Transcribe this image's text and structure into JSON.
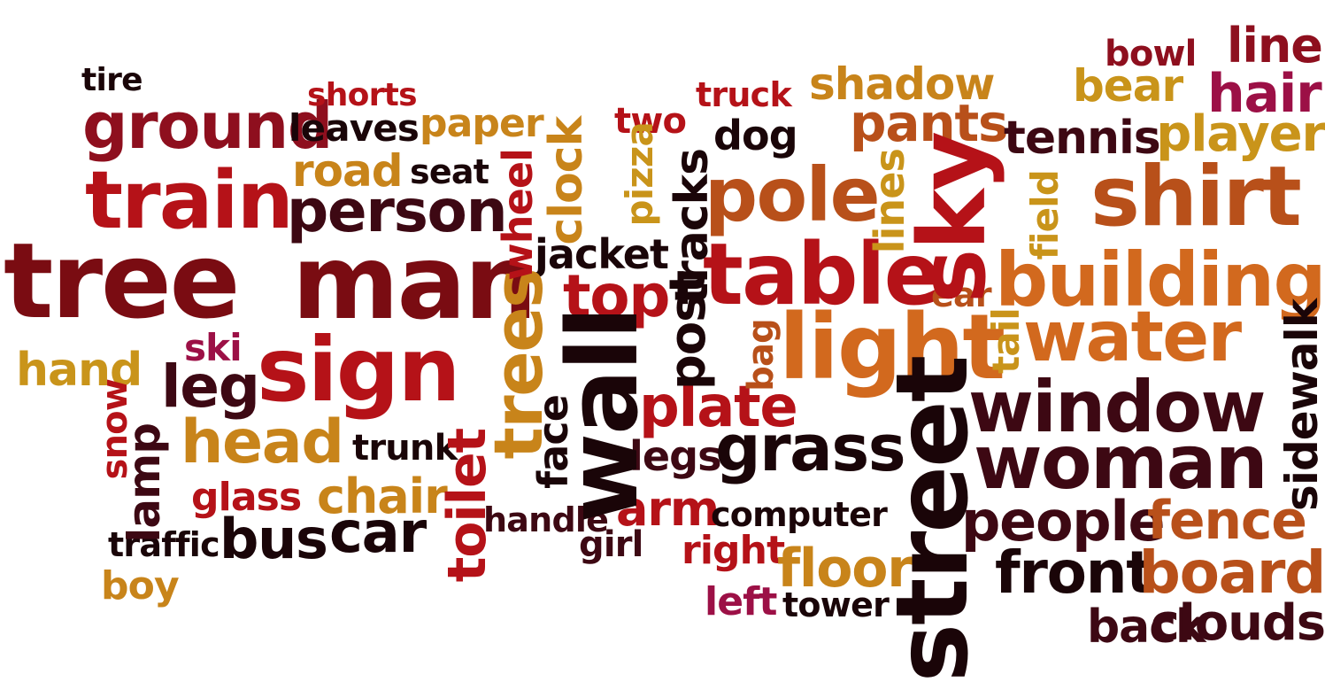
{
  "palette": {
    "red": "#b51218",
    "crimson": "#8e0f1e",
    "dark_red": "#7a0c12",
    "maroon": "#3d0813",
    "black": "#1a0508",
    "orange": "#d2691e",
    "amber": "#c8841a",
    "gold": "#c9941a",
    "rust": "#b8501a",
    "magenta": "#9c1046"
  },
  "words": [
    {
      "id": "tree",
      "text": "tree",
      "color": "dark_red",
      "orient": "h"
    },
    {
      "id": "man",
      "text": "man",
      "color": "dark_red",
      "orient": "h"
    },
    {
      "id": "train",
      "text": "train",
      "color": "red",
      "orient": "h"
    },
    {
      "id": "ground",
      "text": "ground",
      "color": "crimson",
      "orient": "h"
    },
    {
      "id": "tire",
      "text": "tire",
      "color": "black",
      "orient": "h"
    },
    {
      "id": "shorts",
      "text": "shorts",
      "color": "red",
      "orient": "h"
    },
    {
      "id": "leaves",
      "text": "leaves",
      "color": "black",
      "orient": "h"
    },
    {
      "id": "paper",
      "text": "paper",
      "color": "amber",
      "orient": "h"
    },
    {
      "id": "road",
      "text": "road",
      "color": "amber",
      "orient": "h"
    },
    {
      "id": "seat",
      "text": "seat",
      "color": "black",
      "orient": "h"
    },
    {
      "id": "person",
      "text": "person",
      "color": "maroon",
      "orient": "h"
    },
    {
      "id": "sign",
      "text": "sign",
      "color": "red",
      "orient": "h"
    },
    {
      "id": "ski",
      "text": "ski",
      "color": "magenta",
      "orient": "h"
    },
    {
      "id": "hand",
      "text": "hand",
      "color": "gold",
      "orient": "h"
    },
    {
      "id": "leg",
      "text": "leg",
      "color": "maroon",
      "orient": "h"
    },
    {
      "id": "head",
      "text": "head",
      "color": "amber",
      "orient": "h"
    },
    {
      "id": "glass",
      "text": "glass",
      "color": "red",
      "orient": "h"
    },
    {
      "id": "chair",
      "text": "chair",
      "color": "amber",
      "orient": "h"
    },
    {
      "id": "trunk",
      "text": "trunk",
      "color": "black",
      "orient": "h"
    },
    {
      "id": "bus",
      "text": "bus",
      "color": "black",
      "orient": "h"
    },
    {
      "id": "car",
      "text": "car",
      "color": "black",
      "orient": "h"
    },
    {
      "id": "traffic",
      "text": "traffic",
      "color": "black",
      "orient": "h"
    },
    {
      "id": "boy",
      "text": "boy",
      "color": "amber",
      "orient": "h"
    },
    {
      "id": "handle",
      "text": "handle",
      "color": "maroon",
      "orient": "h"
    },
    {
      "id": "girl",
      "text": "girl",
      "color": "maroon",
      "orient": "h"
    },
    {
      "id": "jacket",
      "text": "jacket",
      "color": "black",
      "orient": "h"
    },
    {
      "id": "top",
      "text": "top",
      "color": "red",
      "orient": "h"
    },
    {
      "id": "two",
      "text": "two",
      "color": "red",
      "orient": "h"
    },
    {
      "id": "truck",
      "text": "truck",
      "color": "red",
      "orient": "h"
    },
    {
      "id": "dog",
      "text": "dog",
      "color": "black",
      "orient": "h"
    },
    {
      "id": "shadow",
      "text": "shadow",
      "color": "amber",
      "orient": "h"
    },
    {
      "id": "pants",
      "text": "pants",
      "color": "rust",
      "orient": "h"
    },
    {
      "id": "pole",
      "text": "pole",
      "color": "rust",
      "orient": "h"
    },
    {
      "id": "table",
      "text": "table",
      "color": "red",
      "orient": "h"
    },
    {
      "id": "light",
      "text": "light",
      "color": "orange",
      "orient": "h"
    },
    {
      "id": "plate",
      "text": "plate",
      "color": "red",
      "orient": "h"
    },
    {
      "id": "legs",
      "text": "legs",
      "color": "maroon",
      "orient": "h"
    },
    {
      "id": "grass",
      "text": "grass",
      "color": "black",
      "orient": "h"
    },
    {
      "id": "arm",
      "text": "arm",
      "color": "red",
      "orient": "h"
    },
    {
      "id": "computer",
      "text": "computer",
      "color": "black",
      "orient": "h"
    },
    {
      "id": "right",
      "text": "right",
      "color": "red",
      "orient": "h"
    },
    {
      "id": "floor",
      "text": "floor",
      "color": "amber",
      "orient": "h"
    },
    {
      "id": "left",
      "text": "left",
      "color": "magenta",
      "orient": "h"
    },
    {
      "id": "tower",
      "text": "tower",
      "color": "black",
      "orient": "h"
    },
    {
      "id": "bowl",
      "text": "bowl",
      "color": "crimson",
      "orient": "h"
    },
    {
      "id": "line",
      "text": "line",
      "color": "crimson",
      "orient": "h"
    },
    {
      "id": "bear",
      "text": "bear",
      "color": "gold",
      "orient": "h"
    },
    {
      "id": "hair",
      "text": "hair",
      "color": "magenta",
      "orient": "h"
    },
    {
      "id": "tennis",
      "text": "tennis",
      "color": "maroon",
      "orient": "h"
    },
    {
      "id": "player",
      "text": "player",
      "color": "gold",
      "orient": "h"
    },
    {
      "id": "shirt",
      "text": "shirt",
      "color": "rust",
      "orient": "h"
    },
    {
      "id": "building",
      "text": "building",
      "color": "orange",
      "orient": "h"
    },
    {
      "id": "ear",
      "text": "ear",
      "color": "rust",
      "orient": "h"
    },
    {
      "id": "water",
      "text": "water",
      "color": "orange",
      "orient": "h"
    },
    {
      "id": "window",
      "text": "window",
      "color": "maroon",
      "orient": "h"
    },
    {
      "id": "woman",
      "text": "woman",
      "color": "maroon",
      "orient": "h"
    },
    {
      "id": "people",
      "text": "people",
      "color": "maroon",
      "orient": "h"
    },
    {
      "id": "fence",
      "text": "fence",
      "color": "rust",
      "orient": "h"
    },
    {
      "id": "front",
      "text": "front",
      "color": "black",
      "orient": "h"
    },
    {
      "id": "board",
      "text": "board",
      "color": "rust",
      "orient": "h"
    },
    {
      "id": "back",
      "text": "back",
      "color": "maroon",
      "orient": "h"
    },
    {
      "id": "clouds",
      "text": "clouds",
      "color": "maroon",
      "orient": "h"
    },
    {
      "id": "snow",
      "text": "snow",
      "color": "red",
      "orient": "vu"
    },
    {
      "id": "lamp",
      "text": "lamp",
      "color": "maroon",
      "orient": "vu"
    },
    {
      "id": "trees",
      "text": "trees",
      "color": "amber",
      "orient": "vu"
    },
    {
      "id": "wheel",
      "text": "wheel",
      "color": "red",
      "orient": "vu"
    },
    {
      "id": "clock",
      "text": "clock",
      "color": "amber",
      "orient": "vu"
    },
    {
      "id": "toilet",
      "text": "toilet",
      "color": "red",
      "orient": "vu"
    },
    {
      "id": "pizza",
      "text": "pizza",
      "color": "gold",
      "orient": "vu"
    },
    {
      "id": "tracks",
      "text": "tracks",
      "color": "black",
      "orient": "vu"
    },
    {
      "id": "post",
      "text": "post",
      "color": "black",
      "orient": "vu"
    },
    {
      "id": "face",
      "text": "face",
      "color": "black",
      "orient": "vu"
    },
    {
      "id": "wall",
      "text": "wall",
      "color": "black",
      "orient": "vu"
    },
    {
      "id": "bag",
      "text": "bag",
      "color": "rust",
      "orient": "vu"
    },
    {
      "id": "lines",
      "text": "lines",
      "color": "gold",
      "orient": "vu"
    },
    {
      "id": "sky",
      "text": "sky",
      "color": "red",
      "orient": "vu"
    },
    {
      "id": "field",
      "text": "field",
      "color": "gold",
      "orient": "vu"
    },
    {
      "id": "tail",
      "text": "tail",
      "color": "gold",
      "orient": "vu"
    },
    {
      "id": "street",
      "text": "street",
      "color": "black",
      "orient": "vu"
    },
    {
      "id": "sidewalk",
      "text": "sidewalk",
      "color": "black",
      "orient": "vu"
    }
  ]
}
